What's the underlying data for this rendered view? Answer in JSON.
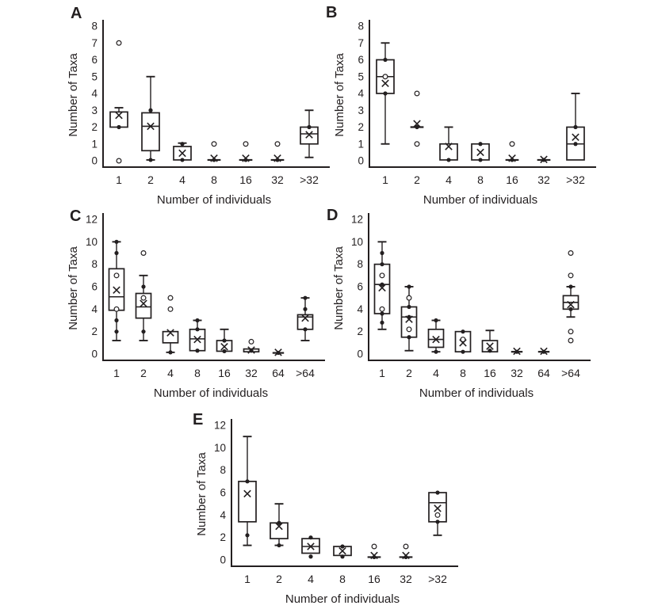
{
  "colors": {
    "ink": "#231f20",
    "background": "#ffffff"
  },
  "chart_data": [
    {
      "type": "box",
      "panel_label": "A",
      "xlabel": "Number of individuals",
      "ylabel": "Number of Taxa",
      "ylim": [
        0,
        8
      ],
      "ytick_step": 1,
      "legend": "none",
      "categories": [
        "1",
        "2",
        "4",
        "8",
        "16",
        "32",
        ">32"
      ],
      "boxes": [
        {
          "whisker_low": null,
          "q1": 2,
          "median": null,
          "q3": 2.9,
          "whisker_high": 3.15,
          "mean": 2.7,
          "points_filled": [
            2
          ],
          "points_open": [
            7,
            0
          ]
        },
        {
          "whisker_low": 0.05,
          "q1": 0.6,
          "median": 2.05,
          "q3": 2.85,
          "whisker_high": 5,
          "mean": 2.05,
          "points_filled": [
            3,
            0.05
          ],
          "points_open": []
        },
        {
          "whisker_low": null,
          "q1": 0.05,
          "median": null,
          "q3": 0.85,
          "whisker_high": 1.05,
          "mean": 0.45,
          "points_filled": [
            1,
            0.05
          ],
          "points_open": []
        },
        {
          "whisker_low": null,
          "q1": 0.05,
          "median": null,
          "q3": 0.05,
          "whisker_high": null,
          "mean": 0.15,
          "points_filled": [
            0.05
          ],
          "points_open": [
            1
          ]
        },
        {
          "whisker_low": null,
          "q1": 0.05,
          "median": null,
          "q3": 0.05,
          "whisker_high": null,
          "mean": 0.15,
          "points_filled": [
            0.05
          ],
          "points_open": [
            1
          ]
        },
        {
          "whisker_low": null,
          "q1": 0.05,
          "median": null,
          "q3": 0.05,
          "whisker_high": null,
          "mean": 0.15,
          "points_filled": [
            0.05
          ],
          "points_open": [
            1
          ]
        },
        {
          "whisker_low": 0.2,
          "q1": 1,
          "median": 1.6,
          "q3": 2,
          "whisker_high": 3,
          "mean": 1.55,
          "points_filled": [
            2
          ],
          "points_open": []
        }
      ]
    },
    {
      "type": "box",
      "panel_label": "B",
      "xlabel": "Number of individuals",
      "ylabel": "Number of Taxa",
      "ylim": [
        0,
        8
      ],
      "ytick_step": 1,
      "legend": "none",
      "categories": [
        "1",
        "2",
        "4",
        "8",
        "16",
        "32",
        ">32"
      ],
      "boxes": [
        {
          "whisker_low": 1,
          "q1": 4,
          "median": 5,
          "q3": 6,
          "whisker_high": 7,
          "mean": 4.6,
          "points_filled": [
            6,
            4
          ],
          "points_open": [
            5
          ]
        },
        {
          "whisker_low": null,
          "q1": 2,
          "median": null,
          "q3": 2,
          "whisker_high": null,
          "mean": 2.2,
          "points_filled": [
            2
          ],
          "points_open": [
            4,
            1
          ]
        },
        {
          "whisker_low": null,
          "q1": 0.05,
          "median": null,
          "q3": 1,
          "whisker_high": 2,
          "mean": 0.85,
          "points_filled": [
            0.05
          ],
          "points_open": []
        },
        {
          "whisker_low": null,
          "q1": 0.05,
          "median": null,
          "q3": 1,
          "whisker_high": null,
          "mean": 0.5,
          "points_filled": [
            1,
            0.05
          ],
          "points_open": []
        },
        {
          "whisker_low": null,
          "q1": 0.05,
          "median": null,
          "q3": 0.05,
          "whisker_high": null,
          "mean": 0.15,
          "points_filled": [
            0.05
          ],
          "points_open": [
            1
          ]
        },
        {
          "whisker_low": null,
          "q1": 0.05,
          "median": null,
          "q3": 0.05,
          "whisker_high": null,
          "mean": 0.08,
          "points_filled": [
            0.05
          ],
          "points_open": []
        },
        {
          "whisker_low": null,
          "q1": 0.05,
          "median": 1,
          "q3": 2,
          "whisker_high": 4,
          "mean": 1.4,
          "points_filled": [
            2,
            1
          ],
          "points_open": []
        }
      ]
    },
    {
      "type": "box",
      "panel_label": "C",
      "xlabel": "Number of individuals",
      "ylabel": "Number of Taxa",
      "ylim": [
        0,
        12
      ],
      "ytick_step": 2,
      "legend": "none",
      "categories": [
        "1",
        "2",
        "4",
        "8",
        "16",
        "32",
        "64",
        ">64"
      ],
      "boxes": [
        {
          "whisker_low": 1.2,
          "q1": 3.9,
          "median": 5.1,
          "q3": 7.6,
          "whisker_high": 10,
          "mean": 5.7,
          "points_filled": [
            10,
            9,
            3,
            2
          ],
          "points_open": [
            7,
            4
          ]
        },
        {
          "whisker_low": 1.2,
          "q1": 3.2,
          "median": 4.2,
          "q3": 5.4,
          "whisker_high": 7,
          "mean": 4.5,
          "points_filled": [
            6,
            2
          ],
          "points_open": [
            9,
            5
          ]
        },
        {
          "whisker_low": 0.15,
          "q1": 1,
          "median": null,
          "q3": 2,
          "whisker_high": null,
          "mean": 1.9,
          "points_filled": [
            0.15
          ],
          "points_open": [
            5,
            4
          ]
        },
        {
          "whisker_low": null,
          "q1": 0.3,
          "median": 1.35,
          "q3": 2.2,
          "whisker_high": 3,
          "mean": 1.3,
          "points_filled": [
            3,
            2.2,
            0.3
          ],
          "points_open": []
        },
        {
          "whisker_low": null,
          "q1": 0.25,
          "median": null,
          "q3": 1.2,
          "whisker_high": 2.2,
          "mean": 0.65,
          "points_filled": [
            1.2,
            0.25
          ],
          "points_open": []
        },
        {
          "whisker_low": null,
          "q1": 0.2,
          "median": null,
          "q3": 0.45,
          "whisker_high": null,
          "mean": 0.35,
          "points_filled": [
            0.3
          ],
          "points_open": [
            1.1
          ]
        },
        {
          "whisker_low": null,
          "q1": 0.1,
          "median": null,
          "q3": 0.1,
          "whisker_high": null,
          "mean": 0.15,
          "points_filled": [
            0.1
          ],
          "points_open": []
        },
        {
          "whisker_low": 1.2,
          "q1": 2.2,
          "median": 3.3,
          "q3": 3.5,
          "whisker_high": 5,
          "mean": 3.2,
          "points_filled": [
            5,
            4,
            2.2
          ],
          "points_open": []
        }
      ]
    },
    {
      "type": "box",
      "panel_label": "D",
      "xlabel": "Number of individuals",
      "ylabel": "Number of Taxa",
      "ylim": [
        0,
        12
      ],
      "ytick_step": 2,
      "legend": "none",
      "categories": [
        "1",
        "2",
        "4",
        "8",
        "16",
        "32",
        "64",
        ">64"
      ],
      "boxes": [
        {
          "whisker_low": 2.2,
          "q1": 3.6,
          "median": 6.2,
          "q3": 8,
          "whisker_high": 10,
          "mean": 5.9,
          "points_filled": [
            9,
            8,
            6.2,
            3.6,
            2.8
          ],
          "points_open": [
            7,
            4
          ]
        },
        {
          "whisker_low": 0.3,
          "q1": 1.5,
          "median": 3.3,
          "q3": 4.2,
          "whisker_high": 6,
          "mean": 3.1,
          "points_filled": [
            6,
            4.2,
            3.3,
            1.5
          ],
          "points_open": [
            5,
            2.2
          ]
        },
        {
          "whisker_low": 0.2,
          "q1": 0.6,
          "median": 1.3,
          "q3": 2.2,
          "whisker_high": 3,
          "mean": 1.3,
          "points_filled": [
            3,
            0.2
          ],
          "points_open": []
        },
        {
          "whisker_low": null,
          "q1": 0.2,
          "median": null,
          "q3": 2,
          "whisker_high": null,
          "mean": 1.0,
          "points_filled": [
            2,
            0.2
          ],
          "points_open": [
            1.3
          ]
        },
        {
          "whisker_low": null,
          "q1": 0.2,
          "median": null,
          "q3": 1.2,
          "whisker_high": 2.1,
          "mean": 0.7,
          "points_filled": [
            0.3
          ],
          "points_open": []
        },
        {
          "whisker_low": null,
          "q1": 0.2,
          "median": null,
          "q3": 0.2,
          "whisker_high": null,
          "mean": 0.25,
          "points_filled": [
            0.2
          ],
          "points_open": []
        },
        {
          "whisker_low": null,
          "q1": 0.2,
          "median": null,
          "q3": 0.2,
          "whisker_high": null,
          "mean": 0.25,
          "points_filled": [
            0.2
          ],
          "points_open": []
        },
        {
          "whisker_low": 3.3,
          "q1": 4,
          "median": 4.6,
          "q3": 5.2,
          "whisker_high": 6,
          "mean": 4.4,
          "points_filled": [
            6,
            4
          ],
          "points_open": [
            9,
            7,
            2,
            1.2
          ]
        }
      ]
    },
    {
      "type": "box",
      "panel_label": "E",
      "xlabel": "Number of individuals",
      "ylabel": "Number of Taxa",
      "ylim": [
        0,
        12
      ],
      "ytick_step": 2,
      "legend": "none",
      "categories": [
        "1",
        "2",
        "4",
        "8",
        "16",
        "32",
        ">32"
      ],
      "boxes": [
        {
          "whisker_low": 1.3,
          "q1": 3.4,
          "median": null,
          "q3": 7,
          "whisker_high": 11,
          "mean": 5.9,
          "points_filled": [
            7,
            2.2
          ],
          "points_open": []
        },
        {
          "whisker_low": 1.3,
          "q1": 1.9,
          "median": null,
          "q3": 3.3,
          "whisker_high": 5,
          "mean": 3.0,
          "points_filled": [
            3.3,
            1.3
          ],
          "points_open": []
        },
        {
          "whisker_low": null,
          "q1": 0.6,
          "median": 1.2,
          "q3": 1.9,
          "whisker_high": null,
          "mean": 1.2,
          "points_filled": [
            2,
            0.3
          ],
          "points_open": []
        },
        {
          "whisker_low": null,
          "q1": 0.4,
          "median": null,
          "q3": 1.2,
          "whisker_high": null,
          "mean": 0.8,
          "points_filled": [
            1.2,
            0.3
          ],
          "points_open": []
        },
        {
          "whisker_low": null,
          "q1": 0.25,
          "median": null,
          "q3": 0.25,
          "whisker_high": null,
          "mean": 0.4,
          "points_filled": [
            0.25
          ],
          "points_open": [
            1.2
          ]
        },
        {
          "whisker_low": null,
          "q1": 0.25,
          "median": null,
          "q3": 0.25,
          "whisker_high": null,
          "mean": 0.4,
          "points_filled": [
            0.25
          ],
          "points_open": [
            1.2
          ]
        },
        {
          "whisker_low": 2.2,
          "q1": 3.4,
          "median": 5.1,
          "q3": 6,
          "whisker_high": null,
          "mean": 4.6,
          "points_filled": [
            6,
            3.4
          ],
          "points_open": [
            4
          ]
        }
      ]
    }
  ]
}
